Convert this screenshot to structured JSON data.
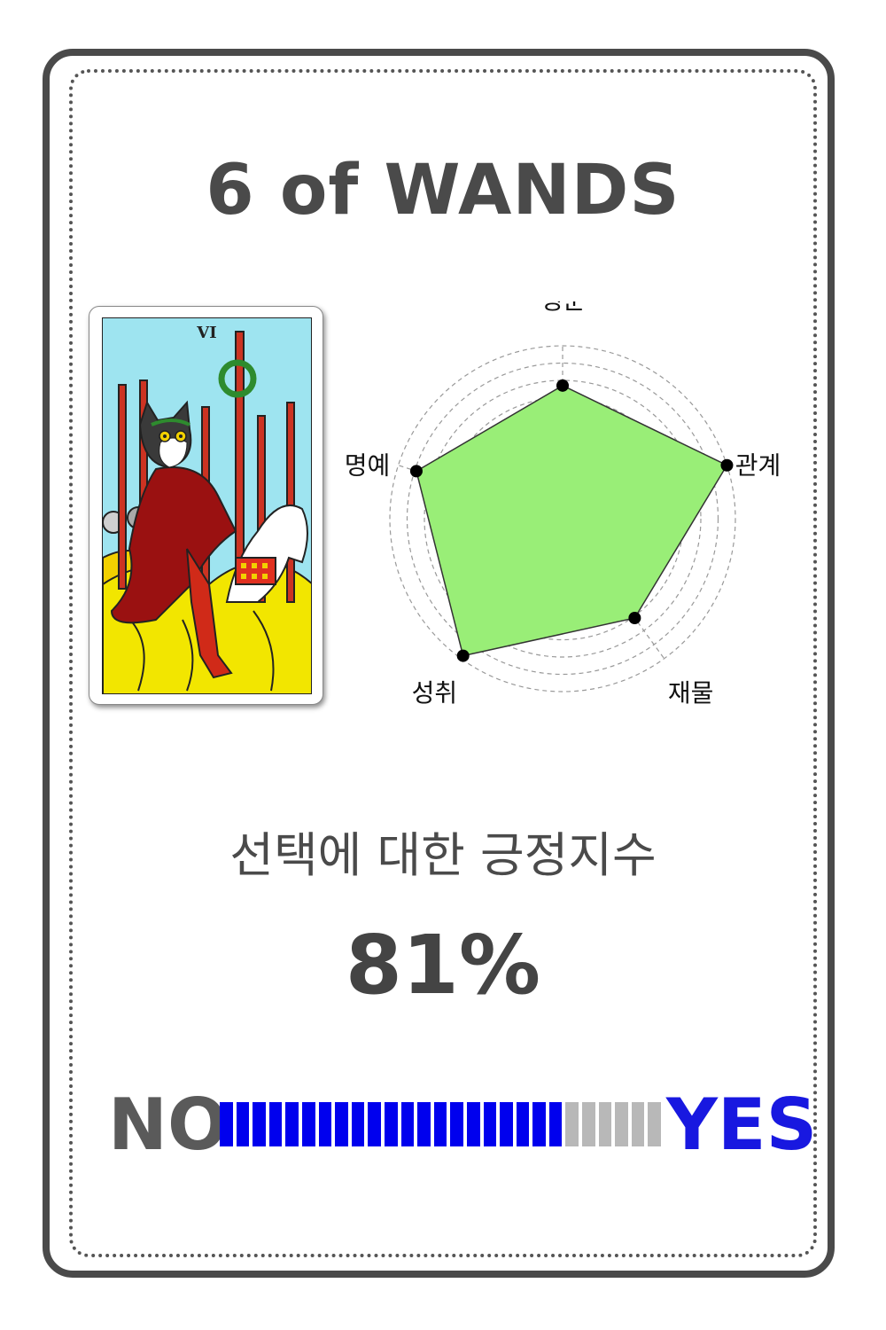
{
  "title": "6 of WANDS",
  "card": {
    "numeral": "VI"
  },
  "chart_data": {
    "type": "radar",
    "axes": [
      "행운",
      "관계",
      "재물",
      "성취",
      "명예"
    ],
    "values": [
      0.77,
      1.0,
      0.71,
      0.98,
      0.89
    ],
    "rings": 10,
    "fill_color": "#99ee77",
    "grid": true
  },
  "question": "선택에 대한 긍정지수",
  "percent": "81%",
  "meter": {
    "no_label": "NO",
    "yes_label": "YES",
    "value": 0.81,
    "segments": 27,
    "on_color": "#0000ee",
    "off_color": "#b8b8b8"
  }
}
